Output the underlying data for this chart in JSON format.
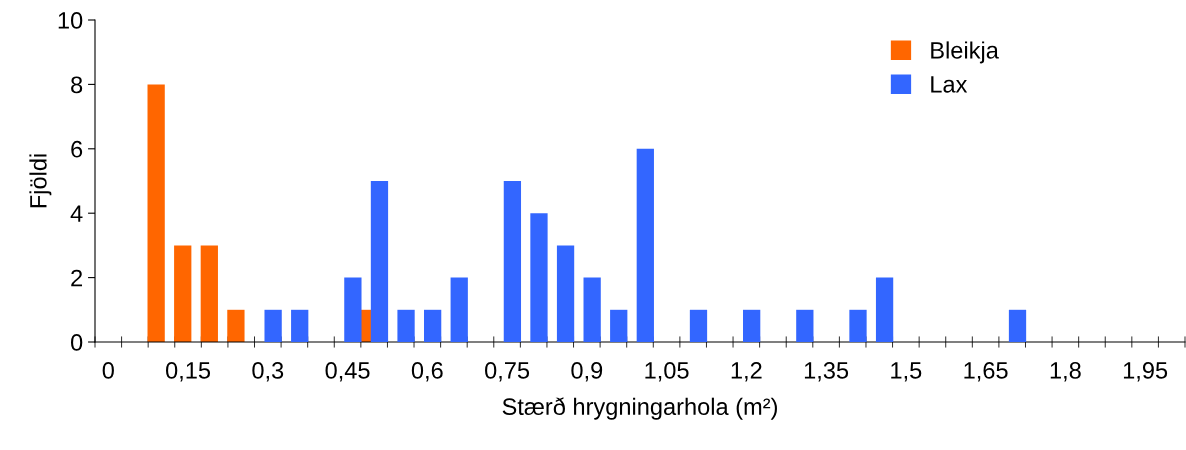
{
  "chart_data": {
    "type": "bar",
    "xlabel": "Stærð hrygningarhola (m²)",
    "ylabel": "Fjöldi",
    "categories": [
      "0",
      null,
      null,
      "0,15",
      null,
      null,
      "0,3",
      null,
      null,
      "0,45",
      null,
      null,
      "0,6",
      null,
      null,
      "0,75",
      null,
      null,
      "0,9",
      null,
      null,
      "1,05",
      null,
      null,
      "1,2",
      null,
      null,
      "1,35",
      null,
      null,
      "1,5",
      null,
      null,
      "1,65",
      null,
      null,
      "1,8",
      null,
      null,
      "1,95",
      null
    ],
    "series": [
      {
        "name": "Bleikja",
        "color": "#ff6600",
        "values": [
          0,
          0,
          8,
          3,
          3,
          1,
          0,
          0,
          0,
          0,
          1,
          0,
          0,
          0,
          0,
          0,
          0,
          0,
          0,
          0,
          0,
          0,
          0,
          0,
          0,
          0,
          0,
          0,
          0,
          0,
          0,
          0,
          0,
          0,
          0,
          0,
          0,
          0,
          0,
          0,
          0
        ]
      },
      {
        "name": "Lax",
        "color": "#3366ff",
        "values": [
          0,
          0,
          0,
          0,
          0,
          0,
          1,
          1,
          0,
          2,
          5,
          1,
          1,
          2,
          0,
          5,
          4,
          3,
          2,
          1,
          6,
          0,
          1,
          0,
          1,
          0,
          1,
          0,
          1,
          2,
          0,
          0,
          0,
          0,
          1,
          0,
          0,
          0,
          0,
          0,
          0
        ]
      }
    ],
    "ylim": [
      0,
      10
    ],
    "yticks": [
      0,
      2,
      4,
      6,
      8,
      10
    ],
    "grid": false,
    "legend": "top right"
  }
}
